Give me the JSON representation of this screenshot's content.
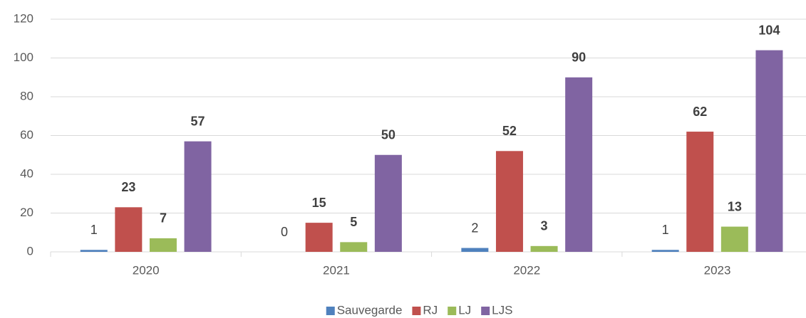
{
  "chart_data": {
    "type": "bar",
    "categories": [
      "2020",
      "2021",
      "2022",
      "2023"
    ],
    "series": [
      {
        "name": "Sauvegarde",
        "color": "#4f81bd",
        "label_weight": "normal",
        "values": [
          1,
          0,
          2,
          1
        ]
      },
      {
        "name": "RJ",
        "color": "#c0504d",
        "label_weight": "bold",
        "values": [
          23,
          15,
          52,
          62
        ]
      },
      {
        "name": "LJ",
        "color": "#9bbb59",
        "label_weight": "bold",
        "values": [
          7,
          5,
          3,
          13
        ]
      },
      {
        "name": "LJS",
        "color": "#8064a2",
        "label_weight": "bold",
        "values": [
          57,
          50,
          90,
          104
        ]
      }
    ],
    "ylim": [
      0,
      120
    ],
    "yticks": [
      0,
      20,
      40,
      60,
      80,
      100,
      120
    ],
    "grid": true,
    "legend": "bottom"
  }
}
